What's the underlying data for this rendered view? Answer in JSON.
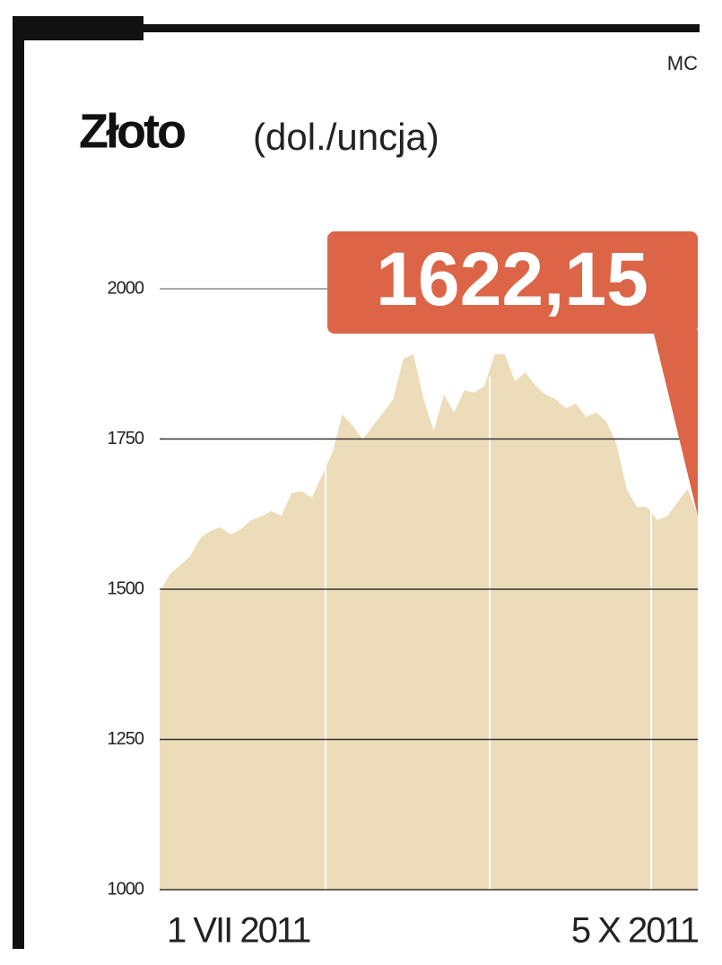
{
  "chart_data": {
    "type": "area",
    "title": "Złoto",
    "subtitle": "(dol./uncja)",
    "source": "MC",
    "categories": [
      "1 VII 2011",
      null,
      null,
      null,
      null,
      null,
      null,
      null,
      null,
      null,
      null,
      null,
      null,
      null,
      null,
      null,
      null,
      null,
      null,
      null,
      null,
      null,
      null,
      null,
      null,
      null,
      null,
      null,
      null,
      null,
      null,
      null,
      null,
      null,
      null,
      null,
      null,
      null,
      null,
      null,
      null,
      null,
      null,
      null,
      null,
      null,
      null,
      null,
      null,
      null,
      null,
      null,
      null,
      "5 X 2011"
    ],
    "values": [
      1495,
      1525,
      1540,
      1555,
      1585,
      1597,
      1603,
      1591,
      1600,
      1615,
      1621,
      1630,
      1622,
      1660,
      1663,
      1652,
      1690,
      1727,
      1791,
      1772,
      1749,
      1772,
      1794,
      1816,
      1884,
      1891,
      1816,
      1764,
      1824,
      1794,
      1831,
      1827,
      1839,
      1891,
      1891,
      1846,
      1861,
      1839,
      1824,
      1816,
      1801,
      1809,
      1787,
      1794,
      1779,
      1742,
      1667,
      1637,
      1637,
      1615,
      1622,
      1645,
      1667,
      1622.15
    ],
    "value_labels": [
      null,
      null,
      null,
      null,
      null,
      null,
      null,
      null,
      null,
      null,
      null,
      null,
      null,
      null,
      null,
      null,
      null,
      null,
      null,
      null,
      null,
      null,
      null,
      null,
      null,
      null,
      null,
      null,
      null,
      null,
      null,
      null,
      null,
      null,
      null,
      null,
      null,
      null,
      null,
      null,
      null,
      null,
      null,
      null,
      null,
      null,
      null,
      null,
      null,
      null,
      null,
      null,
      null,
      "1622,15"
    ],
    "color": "#eddcb9",
    "label_color": "#dc6548",
    "ylim": [
      1000,
      2000
    ],
    "yticks": [
      1000,
      1250,
      1500,
      1750,
      2000
    ],
    "grid": true
  }
}
